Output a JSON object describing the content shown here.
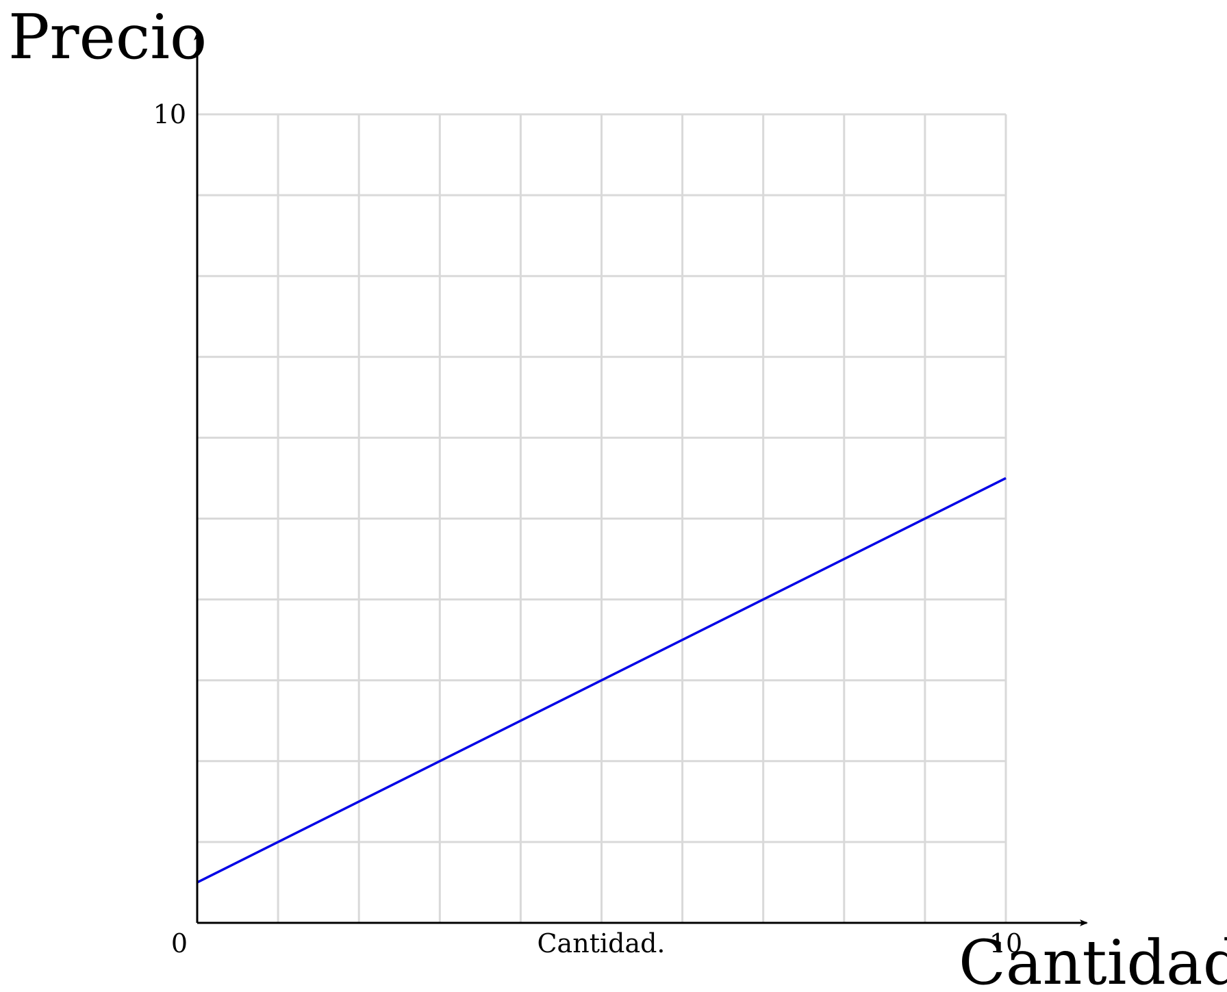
{
  "chart_data": {
    "type": "line",
    "title": "",
    "ylabel": "Precio",
    "xlabel_axis": "Cantidad",
    "xlabel_caption": "Cantidad.",
    "xlim": [
      0,
      10
    ],
    "ylim": [
      0,
      10
    ],
    "x_tick_labels": [
      "0",
      "10"
    ],
    "y_tick_labels": [
      "10"
    ],
    "grid": true,
    "grid_step": 1,
    "series": [
      {
        "x": [
          0,
          10
        ],
        "y": [
          0.5,
          5.5
        ]
      }
    ],
    "colors": {
      "line": "#0000e6",
      "grid": "#d9d9d9",
      "axis": "#000000"
    }
  }
}
